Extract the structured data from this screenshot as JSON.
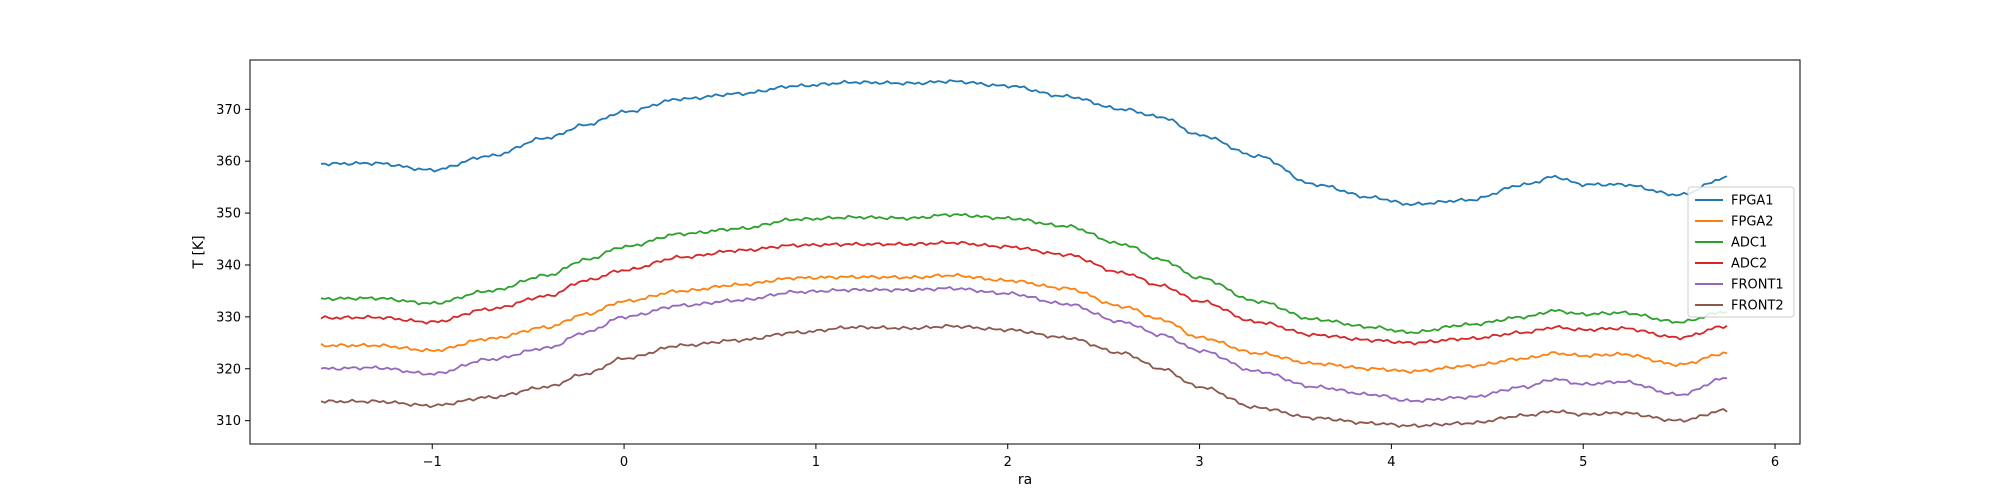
{
  "chart_data": {
    "type": "line",
    "title": "",
    "xlabel": "ra",
    "ylabel": "T [K]",
    "xlim": [
      -1.95,
      6.13
    ],
    "ylim": [
      305.5,
      379.5
    ],
    "xticks": [
      -1,
      0,
      1,
      2,
      3,
      4,
      5,
      6
    ],
    "xtick_labels": [
      "−1",
      "0",
      "1",
      "2",
      "3",
      "4",
      "5",
      "6"
    ],
    "yticks": [
      310,
      320,
      330,
      340,
      350,
      360,
      370
    ],
    "ytick_labels": [
      "310",
      "320",
      "330",
      "340",
      "350",
      "360",
      "370"
    ],
    "grid": false,
    "legend_position": "right",
    "x": [
      -1.58,
      -1.3,
      -1.0,
      -0.7,
      -0.4,
      -0.2,
      0.0,
      0.3,
      0.6,
      0.9,
      1.2,
      1.5,
      1.7,
      2.0,
      2.3,
      2.6,
      2.8,
      3.0,
      3.3,
      3.6,
      3.9,
      4.1,
      4.4,
      4.7,
      4.85,
      5.0,
      5.2,
      5.5,
      5.75
    ],
    "series": [
      {
        "name": "FPGA1",
        "color": "#1f77b4",
        "values": [
          359.5,
          359.6,
          358.3,
          361.0,
          364.5,
          367.0,
          369.5,
          372.0,
          373.0,
          374.5,
          375.2,
          375.0,
          375.4,
          374.5,
          372.5,
          370.0,
          368.5,
          365.0,
          361.0,
          355.5,
          353.0,
          351.7,
          352.5,
          355.5,
          357.0,
          355.5,
          355.5,
          353.5,
          356.8
        ]
      },
      {
        "name": "FPGA2",
        "color": "#ff7f0e",
        "values": [
          324.5,
          324.5,
          323.5,
          325.8,
          328.0,
          330.5,
          333.0,
          335.0,
          336.2,
          337.5,
          337.7,
          337.6,
          338.0,
          337.0,
          335.5,
          332.0,
          329.5,
          326.0,
          323.0,
          321.0,
          320.0,
          319.5,
          320.5,
          322.0,
          323.0,
          322.5,
          322.8,
          320.8,
          323.0
        ]
      },
      {
        "name": "ADC1",
        "color": "#2ca02c",
        "values": [
          333.5,
          333.6,
          332.6,
          335.0,
          338.0,
          341.0,
          343.5,
          346.0,
          347.0,
          348.8,
          349.2,
          349.0,
          349.7,
          349.0,
          347.5,
          344.0,
          341.0,
          337.5,
          333.0,
          329.5,
          328.0,
          327.0,
          328.5,
          330.0,
          331.2,
          330.5,
          330.8,
          329.0,
          331.0
        ]
      },
      {
        "name": "ADC2",
        "color": "#d62728",
        "values": [
          329.8,
          329.9,
          329.0,
          331.5,
          334.0,
          337.0,
          339.0,
          341.5,
          342.8,
          343.8,
          344.0,
          344.0,
          344.3,
          343.5,
          342.0,
          338.5,
          336.0,
          333.0,
          329.0,
          326.5,
          325.5,
          325.0,
          325.8,
          327.0,
          328.0,
          327.5,
          327.8,
          326.0,
          328.2
        ]
      },
      {
        "name": "FRONT1",
        "color": "#9467bd",
        "values": [
          320.0,
          320.2,
          319.0,
          321.8,
          324.0,
          327.0,
          330.0,
          332.2,
          333.2,
          334.8,
          335.2,
          335.2,
          335.5,
          334.5,
          332.5,
          329.0,
          326.5,
          323.5,
          319.5,
          316.5,
          315.0,
          313.8,
          314.5,
          316.5,
          318.0,
          317.0,
          317.5,
          315.0,
          318.2
        ]
      },
      {
        "name": "FRONT2",
        "color": "#8c564b",
        "values": [
          313.7,
          313.7,
          312.9,
          314.5,
          316.5,
          319.0,
          322.0,
          324.5,
          325.5,
          327.0,
          328.0,
          327.8,
          328.2,
          327.5,
          326.0,
          323.0,
          320.0,
          316.5,
          312.5,
          310.5,
          309.5,
          309.0,
          309.5,
          311.0,
          311.8,
          311.2,
          311.5,
          310.0,
          312.0
        ]
      }
    ]
  }
}
